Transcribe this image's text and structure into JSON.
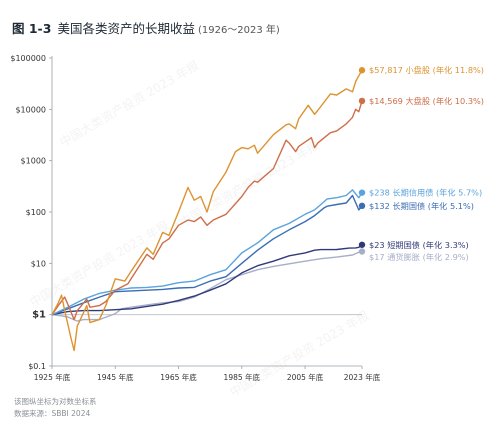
{
  "figure_label": "图 1-3",
  "title": "美国各类资产的长期收益",
  "period": "(1926～2023 年)",
  "notes": {
    "scale_note": "该图纵坐标为对数坐标系",
    "source": "数据来源：SBBI 2024"
  },
  "watermark": "中国大类资产投资 2023 年报",
  "chart_data": {
    "type": "line",
    "y_scale": "log",
    "ylim": [
      0.1,
      100000
    ],
    "xlim": [
      1925,
      2023
    ],
    "ytick_labels": [
      {
        "value": 100000,
        "label": "$100000"
      },
      {
        "value": 10000,
        "label": "$10000"
      },
      {
        "value": 1000,
        "label": "$1000"
      },
      {
        "value": 100,
        "label": "$100"
      },
      {
        "value": 10,
        "label": "$10"
      },
      {
        "value": 1,
        "label": "$1"
      },
      {
        "value": 0.1,
        "label": "$0.1"
      }
    ],
    "xtick_labels": [
      {
        "value": 1925,
        "label": "1925 年底"
      },
      {
        "value": 1945,
        "label": "1945 年底"
      },
      {
        "value": 1965,
        "label": "1965 年底"
      },
      {
        "value": 1985,
        "label": "1985 年底"
      },
      {
        "value": 2005,
        "label": "2005 年底"
      },
      {
        "value": 2023,
        "label": "2023 年底"
      }
    ],
    "grid": false,
    "baseline": 1,
    "series": [
      {
        "label": "$57,817 小盘股 (年化 11.8%)",
        "color": "#dd9330",
        "points": [
          [
            1925,
            1
          ],
          [
            1927,
            1.7
          ],
          [
            1928,
            2.4
          ],
          [
            1929,
            1.2
          ],
          [
            1931,
            0.35
          ],
          [
            1932,
            0.2
          ],
          [
            1933,
            0.6
          ],
          [
            1936,
            1.5
          ],
          [
            1937,
            0.7
          ],
          [
            1940,
            0.8
          ],
          [
            1942,
            1.5
          ],
          [
            1945,
            5
          ],
          [
            1948,
            4.5
          ],
          [
            1950,
            7
          ],
          [
            1955,
            20
          ],
          [
            1957,
            15
          ],
          [
            1960,
            40
          ],
          [
            1962,
            35
          ],
          [
            1965,
            100
          ],
          [
            1968,
            300
          ],
          [
            1970,
            170
          ],
          [
            1972,
            200
          ],
          [
            1974,
            100
          ],
          [
            1976,
            250
          ],
          [
            1980,
            600
          ],
          [
            1983,
            1500
          ],
          [
            1985,
            1800
          ],
          [
            1987,
            1700
          ],
          [
            1989,
            2000
          ],
          [
            1990,
            1400
          ],
          [
            1995,
            3200
          ],
          [
            1999,
            5000
          ],
          [
            2000,
            5200
          ],
          [
            2002,
            4200
          ],
          [
            2003,
            6500
          ],
          [
            2006,
            12000
          ],
          [
            2008,
            8000
          ],
          [
            2009,
            9500
          ],
          [
            2013,
            20000
          ],
          [
            2015,
            19000
          ],
          [
            2018,
            25000
          ],
          [
            2020,
            22000
          ],
          [
            2021,
            35000
          ],
          [
            2022,
            45000
          ],
          [
            2023,
            57817
          ]
        ]
      },
      {
        "label": "$14,569 大盘股 (年化 10.3%)",
        "color": "#cf6d47",
        "points": [
          [
            1925,
            1
          ],
          [
            1927,
            1.5
          ],
          [
            1929,
            2.2
          ],
          [
            1930,
            1.6
          ],
          [
            1932,
            0.8
          ],
          [
            1933,
            1.2
          ],
          [
            1936,
            2
          ],
          [
            1937,
            1.4
          ],
          [
            1940,
            1.5
          ],
          [
            1942,
            1.8
          ],
          [
            1945,
            3
          ],
          [
            1949,
            4
          ],
          [
            1950,
            5
          ],
          [
            1955,
            15
          ],
          [
            1957,
            12
          ],
          [
            1960,
            25
          ],
          [
            1962,
            30
          ],
          [
            1965,
            55
          ],
          [
            1968,
            70
          ],
          [
            1970,
            65
          ],
          [
            1972,
            80
          ],
          [
            1974,
            55
          ],
          [
            1976,
            70
          ],
          [
            1980,
            90
          ],
          [
            1985,
            200
          ],
          [
            1987,
            300
          ],
          [
            1989,
            400
          ],
          [
            1990,
            380
          ],
          [
            1995,
            700
          ],
          [
            1999,
            2500
          ],
          [
            2000,
            2200
          ],
          [
            2002,
            1500
          ],
          [
            2003,
            1900
          ],
          [
            2007,
            2800
          ],
          [
            2008,
            1800
          ],
          [
            2009,
            2200
          ],
          [
            2013,
            3500
          ],
          [
            2015,
            3800
          ],
          [
            2018,
            5200
          ],
          [
            2019,
            6000
          ],
          [
            2020,
            7000
          ],
          [
            2021,
            10000
          ],
          [
            2022,
            9000
          ],
          [
            2023,
            14569
          ]
        ]
      },
      {
        "label": "$238 长期信用债 (年化 5.7%)",
        "color": "#5aa3dc",
        "points": [
          [
            1925,
            1
          ],
          [
            1930,
            1.4
          ],
          [
            1935,
            2
          ],
          [
            1940,
            2.6
          ],
          [
            1945,
            3
          ],
          [
            1950,
            3.3
          ],
          [
            1955,
            3.4
          ],
          [
            1960,
            3.6
          ],
          [
            1965,
            4.2
          ],
          [
            1970,
            4.5
          ],
          [
            1975,
            6
          ],
          [
            1980,
            7.5
          ],
          [
            1985,
            16
          ],
          [
            1990,
            25
          ],
          [
            1995,
            45
          ],
          [
            2000,
            60
          ],
          [
            2005,
            90
          ],
          [
            2008,
            110
          ],
          [
            2010,
            140
          ],
          [
            2012,
            180
          ],
          [
            2015,
            190
          ],
          [
            2018,
            210
          ],
          [
            2020,
            270
          ],
          [
            2022,
            190
          ],
          [
            2023,
            238
          ]
        ]
      },
      {
        "label": "$132 长期国债 (年化 5.1%)",
        "color": "#3a6db3",
        "points": [
          [
            1925,
            1
          ],
          [
            1930,
            1.3
          ],
          [
            1935,
            1.7
          ],
          [
            1940,
            2.2
          ],
          [
            1945,
            2.8
          ],
          [
            1950,
            2.9
          ],
          [
            1955,
            3
          ],
          [
            1960,
            3.1
          ],
          [
            1965,
            3.3
          ],
          [
            1970,
            3.4
          ],
          [
            1975,
            4.5
          ],
          [
            1980,
            5.5
          ],
          [
            1985,
            10
          ],
          [
            1990,
            18
          ],
          [
            1995,
            30
          ],
          [
            2000,
            45
          ],
          [
            2005,
            65
          ],
          [
            2008,
            85
          ],
          [
            2011,
            120
          ],
          [
            2012,
            130
          ],
          [
            2015,
            140
          ],
          [
            2018,
            150
          ],
          [
            2020,
            210
          ],
          [
            2022,
            110
          ],
          [
            2023,
            132
          ]
        ]
      },
      {
        "label": "$23 短期国债 (年化 3.3%)",
        "color": "#303a78",
        "points": [
          [
            1925,
            1
          ],
          [
            1930,
            1.15
          ],
          [
            1935,
            1.2
          ],
          [
            1940,
            1.2
          ],
          [
            1945,
            1.25
          ],
          [
            1950,
            1.3
          ],
          [
            1955,
            1.45
          ],
          [
            1960,
            1.6
          ],
          [
            1965,
            1.9
          ],
          [
            1970,
            2.3
          ],
          [
            1975,
            3
          ],
          [
            1980,
            4
          ],
          [
            1985,
            6.5
          ],
          [
            1990,
            9
          ],
          [
            1995,
            11
          ],
          [
            2000,
            14
          ],
          [
            2005,
            16
          ],
          [
            2008,
            18
          ],
          [
            2010,
            18.5
          ],
          [
            2015,
            18.6
          ],
          [
            2019,
            19.8
          ],
          [
            2021,
            20
          ],
          [
            2022,
            20.5
          ],
          [
            2023,
            23
          ]
        ]
      },
      {
        "label": "$17 通货膨胀 (年化 2.9%)",
        "color": "#a7aec8",
        "points": [
          [
            1925,
            1
          ],
          [
            1928,
            0.95
          ],
          [
            1930,
            0.9
          ],
          [
            1933,
            0.75
          ],
          [
            1935,
            0.8
          ],
          [
            1940,
            0.8
          ],
          [
            1945,
            1.05
          ],
          [
            1947,
            1.3
          ],
          [
            1950,
            1.4
          ],
          [
            1955,
            1.55
          ],
          [
            1960,
            1.7
          ],
          [
            1965,
            1.8
          ],
          [
            1970,
            2.2
          ],
          [
            1975,
            3.2
          ],
          [
            1980,
            4.8
          ],
          [
            1985,
            6
          ],
          [
            1990,
            7.5
          ],
          [
            1995,
            8.7
          ],
          [
            2000,
            9.8
          ],
          [
            2005,
            11
          ],
          [
            2010,
            12.3
          ],
          [
            2015,
            13.2
          ],
          [
            2020,
            14.5
          ],
          [
            2021,
            15.5
          ],
          [
            2022,
            16.5
          ],
          [
            2023,
            17
          ]
        ]
      }
    ]
  }
}
